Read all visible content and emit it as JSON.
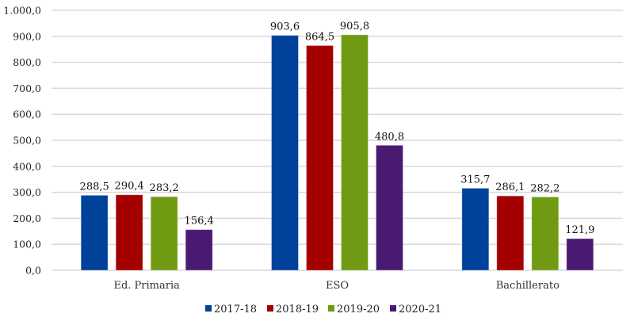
{
  "chart_data": {
    "type": "bar",
    "title": "",
    "xlabel": "",
    "ylabel": "",
    "ylim": [
      0,
      1000
    ],
    "yticks": [
      "0,0",
      "100,0",
      "200,0",
      "300,0",
      "400,0",
      "500,0",
      "600,0",
      "700,0",
      "800,0",
      "900,0",
      "1.000,0"
    ],
    "ytick_values": [
      0,
      100,
      200,
      300,
      400,
      500,
      600,
      700,
      800,
      900,
      1000
    ],
    "grid": true,
    "legend_position": "bottom",
    "categories": [
      "Ed. Primaria",
      "ESO",
      "Bachillerato"
    ],
    "series": [
      {
        "name": "2017-18",
        "color": "#00419A",
        "values": [
          288.5,
          903.6,
          315.7
        ],
        "labels": [
          "288,5",
          "903,6",
          "315,7"
        ]
      },
      {
        "name": "2018-19",
        "color": "#A50000",
        "values": [
          290.4,
          864.5,
          286.1
        ],
        "labels": [
          "290,4",
          "864,5",
          "286,1"
        ]
      },
      {
        "name": "2019-20",
        "color": "#6F9A12",
        "values": [
          283.2,
          905.8,
          282.2
        ],
        "labels": [
          "283,2",
          "905,8",
          "282,2"
        ]
      },
      {
        "name": "2020-21",
        "color": "#4A1A73",
        "values": [
          156.4,
          480.8,
          121.9
        ],
        "labels": [
          "156,4",
          "480,8",
          "121,9"
        ]
      }
    ]
  }
}
